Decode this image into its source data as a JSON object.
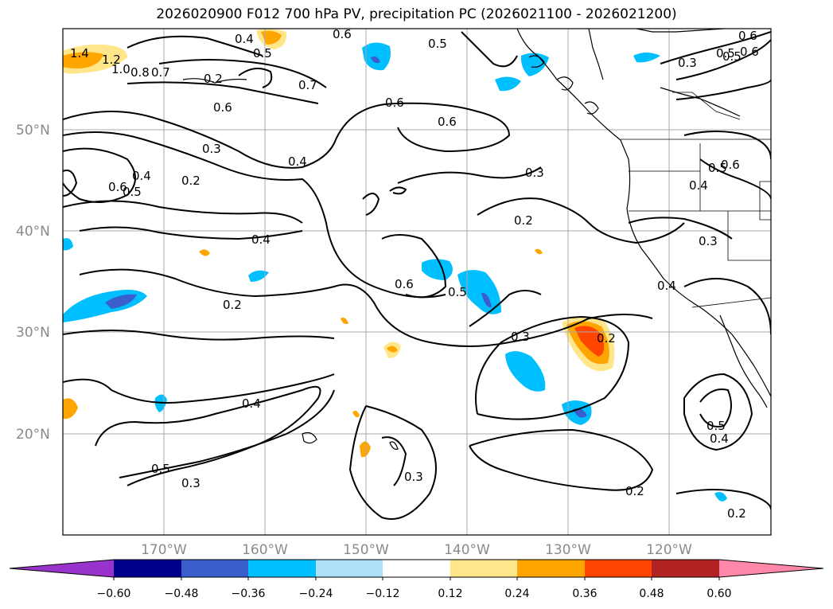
{
  "title": "2026020900 F012 700 hPa PV, precipitation PC (2026021100 - 2026021200)",
  "lat_labels": [
    "50°N",
    "40°N",
    "30°N",
    "20°N"
  ],
  "lon_labels": [
    "170°W",
    "160°W",
    "150°W",
    "140°W",
    "130°W",
    "120°W"
  ],
  "contour_labels": [
    "1.4",
    "1.2",
    "1.0",
    "0.8",
    "0.7",
    "0.4",
    "0.5",
    "0.6",
    "0.5",
    "0.7",
    "0.6",
    "0.6",
    "0.6",
    "0.5",
    "0.3",
    "0.6",
    "0.3",
    "0.4",
    "0.2",
    "0.6",
    "0.5",
    "0.4",
    "0.3",
    "0.4",
    "0.2",
    "0.4",
    "0.3",
    "0.2",
    "0.6",
    "0.5",
    "0.4",
    "0.2",
    "0.3",
    "0.2",
    "0.4",
    "0.5",
    "0.3",
    "0.3",
    "0.5",
    "0.4",
    "0.2",
    "0.2",
    "0.5",
    "0.6",
    "0.5",
    "0.6"
  ],
  "colorbar": {
    "ticks": [
      "−0.60",
      "−0.48",
      "−0.36",
      "−0.24",
      "−0.12",
      "0.12",
      "0.24",
      "0.36",
      "0.48",
      "0.60"
    ],
    "colors": [
      "#9933cc",
      "#00008b",
      "#3a5fcd",
      "#00bfff",
      "#aee0f8",
      "#ffffff",
      "#ffe68a",
      "#ffa500",
      "#ff4500",
      "#b22222",
      "#ff88aa"
    ]
  }
}
